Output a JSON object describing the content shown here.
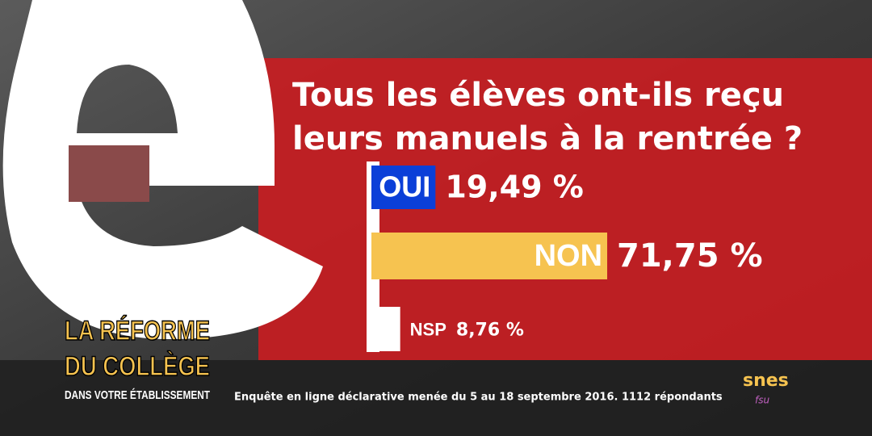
{
  "chart_data": {
    "type": "hbar",
    "title": [
      "Tous les élèves ont-ils reçu",
      "leurs manuels à la rentrée ?"
    ],
    "categories": [
      "OUI",
      "NON",
      "NSP"
    ],
    "values": [
      19.49,
      71.75,
      8.76
    ],
    "value_labels": [
      "19,49 %",
      "71,75 %",
      "8,76 %"
    ],
    "colors": [
      "#0b3fd8",
      "#f6c350",
      "#ffffff"
    ]
  },
  "branding": {
    "campaign": [
      "LA RÉFORME",
      "DU COLLÈGE"
    ],
    "campaign_sub": "DANS VOTRE ÉTABLISSEMENT",
    "footnote": "Enquête en ligne déclarative menée du 5 au 18 septembre 2016. 1112 répondants",
    "logo": "snes",
    "logo_sub": "fsu"
  }
}
